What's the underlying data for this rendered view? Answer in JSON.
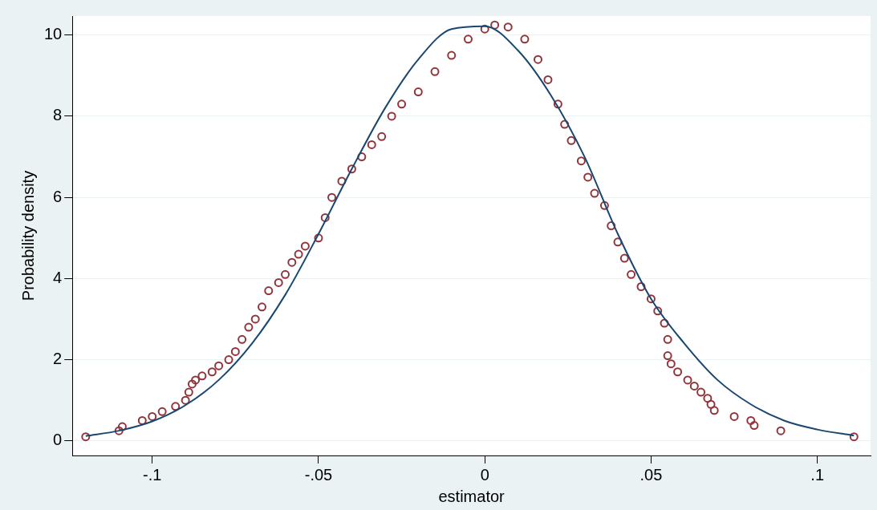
{
  "chart_data": {
    "type": "scatter",
    "xlabel": "estimator",
    "ylabel": "Probability density",
    "xlim": [
      -0.124,
      0.116
    ],
    "ylim": [
      -0.36,
      10.47
    ],
    "xticks": [
      {
        "value": -0.1,
        "label": "-.1"
      },
      {
        "value": -0.05,
        "label": "-.05"
      },
      {
        "value": 0,
        "label": "0"
      },
      {
        "value": 0.05,
        "label": ".05"
      },
      {
        "value": 0.1,
        "label": ".1"
      }
    ],
    "yticks": [
      0,
      2,
      4,
      6,
      8,
      10
    ],
    "grid": "y",
    "legend": false,
    "series": [
      {
        "type": "line",
        "color": "#1a476f",
        "marker": "none",
        "line_style": "solid",
        "x": [
          -0.12,
          -0.11,
          -0.1,
          -0.09,
          -0.08,
          -0.07,
          -0.06,
          -0.05,
          -0.04,
          -0.03,
          -0.02,
          -0.01,
          0,
          0.01,
          0.02,
          0.03,
          0.04,
          0.05,
          0.06,
          0.07,
          0.08,
          0.09,
          0.1,
          0.111
        ],
        "values": [
          0.12,
          0.25,
          0.48,
          0.88,
          1.5,
          2.4,
          3.6,
          5.1,
          6.7,
          8.2,
          9.4,
          10.15,
          10.22,
          9.62,
          8.5,
          7.0,
          5.1,
          3.5,
          2.4,
          1.5,
          0.9,
          0.5,
          0.28,
          0.13
        ]
      },
      {
        "color": "#90353b",
        "marker": "circle",
        "x": [
          -0.12,
          -0.11,
          -0.109,
          -0.103,
          -0.1,
          -0.097,
          -0.093,
          -0.09,
          -0.089,
          -0.088,
          -0.087,
          -0.085,
          -0.082,
          -0.08,
          -0.077,
          -0.075,
          -0.073,
          -0.071,
          -0.069,
          -0.067,
          -0.065,
          -0.062,
          -0.06,
          -0.058,
          -0.056,
          -0.054,
          -0.05,
          -0.048,
          -0.046,
          -0.043,
          -0.04,
          -0.037,
          -0.034,
          -0.031,
          -0.028,
          -0.025,
          -0.02,
          -0.015,
          -0.01,
          -0.005,
          0,
          0.003,
          0.007,
          0.012,
          0.016,
          0.019,
          0.022,
          0.024,
          0.026,
          0.029,
          0.031,
          0.033,
          0.036,
          0.038,
          0.04,
          0.042,
          0.044,
          0.047,
          0.05,
          0.052,
          0.054,
          0.055,
          0.055,
          0.056,
          0.058,
          0.061,
          0.063,
          0.065,
          0.067,
          0.068,
          0.069,
          0.075,
          0.08,
          0.081,
          0.089,
          0.111
        ],
        "values": [
          0.1,
          0.25,
          0.35,
          0.5,
          0.6,
          0.72,
          0.85,
          1.0,
          1.2,
          1.4,
          1.5,
          1.6,
          1.7,
          1.85,
          2.0,
          2.2,
          2.5,
          2.8,
          3.0,
          3.3,
          3.7,
          3.9,
          4.1,
          4.4,
          4.6,
          4.8,
          5.0,
          5.5,
          6.0,
          6.4,
          6.7,
          7.0,
          7.3,
          7.5,
          8.0,
          8.3,
          8.6,
          9.1,
          9.5,
          9.9,
          10.15,
          10.25,
          10.2,
          9.9,
          9.4,
          8.9,
          8.3,
          7.8,
          7.4,
          6.9,
          6.5,
          6.1,
          5.8,
          5.3,
          4.9,
          4.5,
          4.1,
          3.8,
          3.5,
          3.2,
          2.9,
          2.5,
          2.1,
          1.9,
          1.7,
          1.5,
          1.35,
          1.2,
          1.05,
          0.9,
          0.75,
          0.6,
          0.5,
          0.38,
          0.25,
          0.1
        ]
      }
    ]
  }
}
